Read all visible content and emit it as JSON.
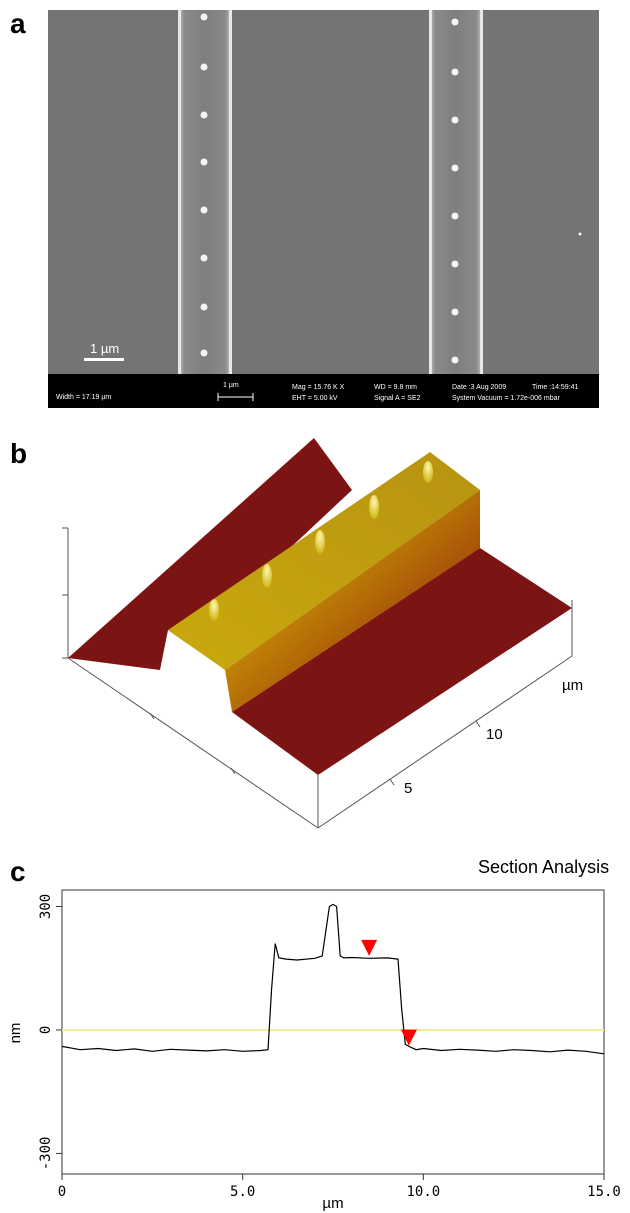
{
  "panels": {
    "a": "a",
    "b": "b",
    "c": "c"
  },
  "sem": {
    "scalebar_label": "1 µm",
    "info": {
      "width": "Width = 17.19 µm",
      "scale": "1 µm",
      "mag": "Mag = 15.76 K X",
      "eht": "EHT = 5.00 kV",
      "wd": "WD = 9.8 mm",
      "signal": "Signal A = SE2",
      "date": "Date :3 Aug 2009",
      "time": "Time :14:59:41",
      "vacuum": "System Vacuum = 1.72e-006 mbar"
    }
  },
  "afm3d": {
    "unit_label": "µm",
    "axis_ticks": [
      "5",
      "10"
    ]
  },
  "section": {
    "title": "Section Analysis"
  },
  "chart_data": {
    "type": "line",
    "title": "Section Analysis",
    "xlabel": "µm",
    "ylabel": "nm",
    "xlim": [
      0,
      15
    ],
    "ylim": [
      -350,
      340
    ],
    "x_tick_labels": [
      "0",
      "5.0",
      "10.0",
      "15.0"
    ],
    "y_tick_labels": [
      "300",
      "0",
      "-300"
    ],
    "reference_line_y": 0,
    "series": [
      {
        "x": [
          0,
          0.5,
          1.0,
          1.5,
          2.0,
          2.5,
          3.0,
          3.5,
          4.0,
          4.5,
          5.0,
          5.5,
          5.7,
          5.8,
          5.9,
          6.0,
          6.2,
          6.5,
          7.0,
          7.2,
          7.4,
          7.5,
          7.6,
          7.7,
          7.8,
          8.0,
          8.5,
          9.0,
          9.3,
          9.4,
          9.5,
          9.6,
          9.8,
          10.0,
          10.5,
          11.0,
          11.5,
          12.0,
          12.5,
          13.0,
          13.5,
          14.0,
          14.5,
          15.0
        ],
        "y": [
          -40,
          -48,
          -45,
          -50,
          -46,
          -52,
          -47,
          -49,
          -51,
          -48,
          -52,
          -50,
          -48,
          100,
          210,
          175,
          172,
          170,
          174,
          180,
          300,
          305,
          300,
          180,
          175,
          176,
          174,
          175,
          172,
          50,
          -35,
          -40,
          -48,
          -45,
          -50,
          -47,
          -49,
          -52,
          -48,
          -50,
          -53,
          -49,
          -52,
          -58
        ]
      }
    ],
    "markers": [
      {
        "x": 8.5,
        "y": 180,
        "color": "#ff0000"
      },
      {
        "x": 9.6,
        "y": -38,
        "color": "#ff0000"
      }
    ],
    "colors": {
      "line": "#000000",
      "reference": "#f3ed9a",
      "marker": "#ff0000"
    }
  }
}
